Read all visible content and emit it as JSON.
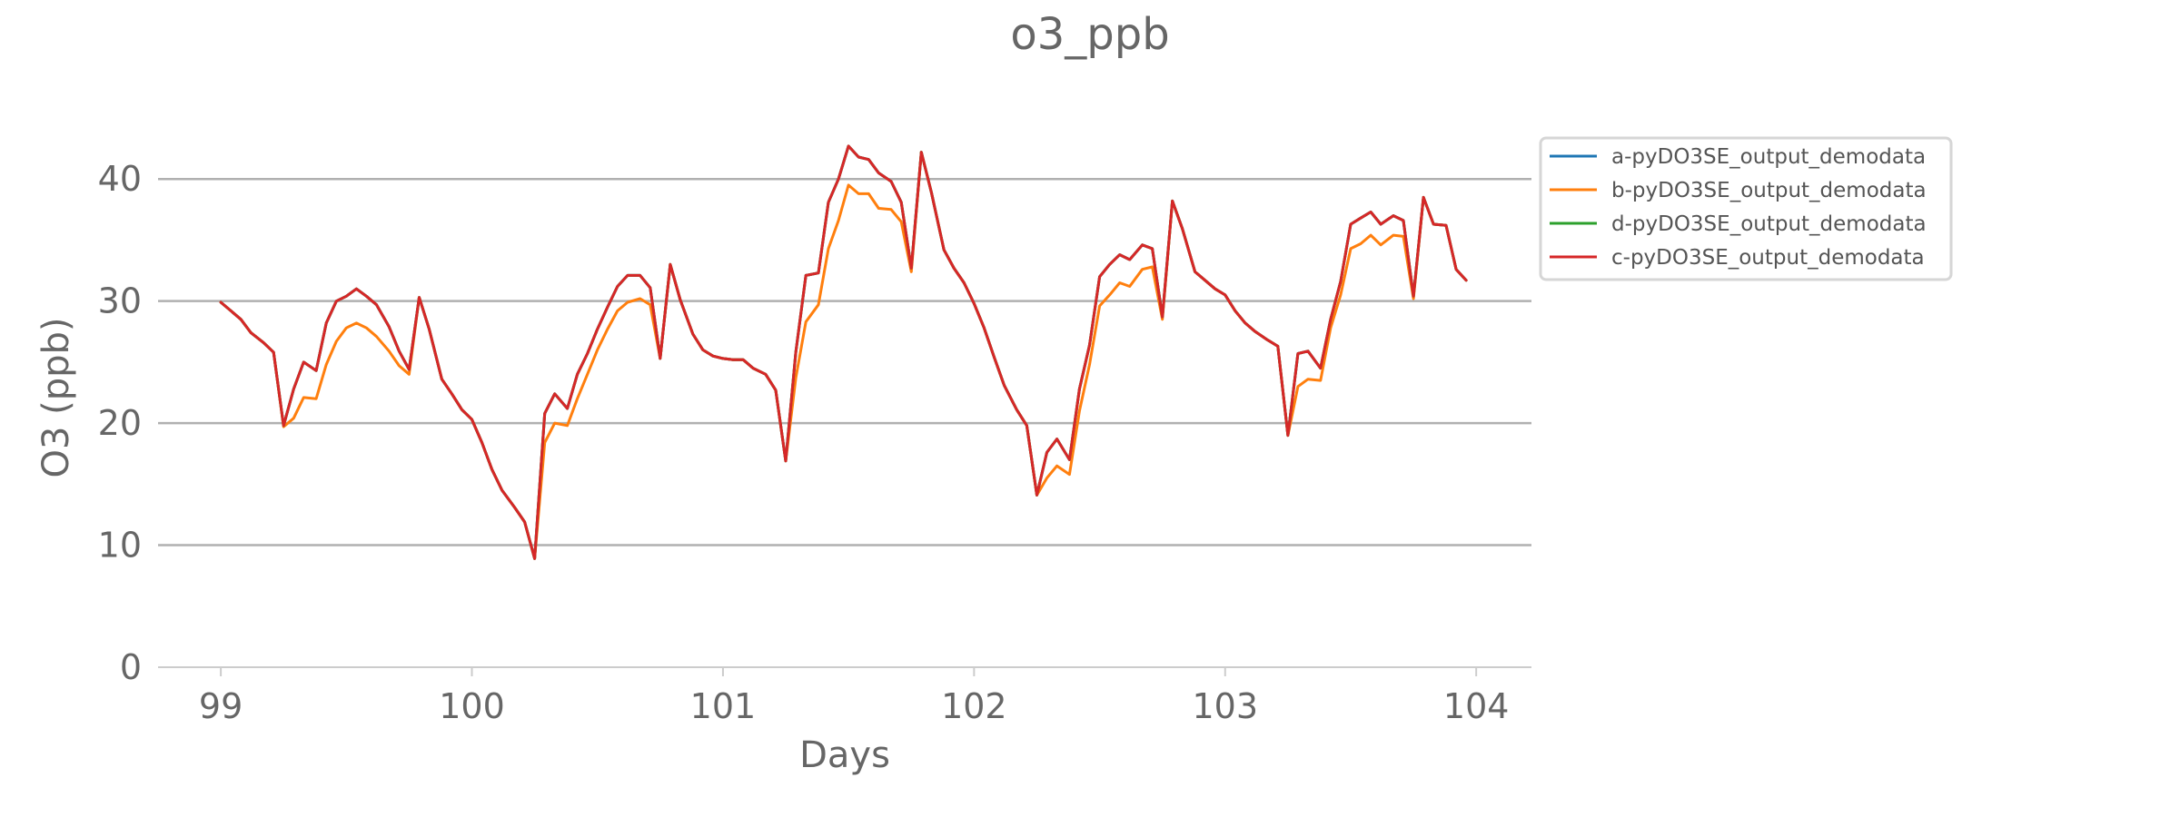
{
  "chart_data": {
    "type": "line",
    "title": "o3_ppb",
    "xlabel": "Days",
    "ylabel": "O3 (ppb)",
    "xlim": [
      98.75,
      104.22
    ],
    "ylim": [
      0,
      45
    ],
    "xticks": [
      99,
      100,
      101,
      102,
      103,
      104
    ],
    "xtick_labels": [
      "99",
      "100",
      "101",
      "102",
      "103",
      "104"
    ],
    "yticks": [
      0,
      10,
      20,
      30,
      40
    ],
    "ytick_labels": [
      "0",
      "10",
      "20",
      "30",
      "40"
    ],
    "grid": "horizontal",
    "legend_position": "outside-right-top",
    "colors": {
      "grid": "#b0b0b0",
      "axis": "#cccccc",
      "text": "#666666"
    },
    "series": [
      {
        "name": "a-pyDO3SE_output_demodata",
        "color": "#1f77b4",
        "x": [
          99.0,
          99.04,
          99.08,
          99.12,
          99.17,
          99.21,
          99.25,
          99.29,
          99.33,
          99.38,
          99.42,
          99.46,
          99.5,
          99.54,
          99.58,
          99.62,
          99.67,
          99.71,
          99.75,
          99.79,
          99.83,
          99.88,
          99.92,
          99.96,
          100.0,
          100.04,
          100.08,
          100.12,
          100.17,
          100.21,
          100.25,
          100.29,
          100.33,
          100.38,
          100.42,
          100.46,
          100.5,
          100.54,
          100.58,
          100.62,
          100.67,
          100.71,
          100.75,
          100.79,
          100.83,
          100.88,
          100.92,
          100.96,
          101.0,
          101.04,
          101.08,
          101.12,
          101.17,
          101.21,
          101.25,
          101.29,
          101.33,
          101.38,
          101.42,
          101.46,
          101.5,
          101.54,
          101.58,
          101.62,
          101.67,
          101.71,
          101.75,
          101.79,
          101.83,
          101.88,
          101.92,
          101.96,
          102.0,
          102.04,
          102.08,
          102.12,
          102.17,
          102.21,
          102.25,
          102.29,
          102.33,
          102.38,
          102.42,
          102.46,
          102.5,
          102.54,
          102.58,
          102.62,
          102.67,
          102.71,
          102.75,
          102.79,
          102.83,
          102.88,
          102.92,
          102.96,
          103.0,
          103.04,
          103.08,
          103.12,
          103.17,
          103.21,
          103.25,
          103.29,
          103.33,
          103.38,
          103.42,
          103.46,
          103.5,
          103.54,
          103.58,
          103.62,
          103.67,
          103.71,
          103.75,
          103.79,
          103.83,
          103.88,
          103.92,
          103.96
        ],
        "values": [
          29.9,
          29.2,
          28.5,
          27.4,
          26.6,
          25.8,
          19.8,
          22.8,
          25.0,
          24.3,
          28.2,
          30.0,
          30.4,
          31.0,
          30.4,
          29.7,
          27.9,
          25.9,
          24.4,
          30.3,
          27.7,
          23.6,
          22.4,
          21.1,
          20.3,
          18.4,
          16.2,
          14.5,
          13.1,
          11.9,
          8.9,
          20.8,
          22.4,
          21.2,
          24.0,
          25.7,
          27.7,
          29.5,
          31.2,
          32.1,
          32.1,
          31.1,
          25.3,
          33.0,
          30.1,
          27.3,
          26.0,
          25.5,
          25.3,
          25.2,
          25.2,
          24.5,
          24.0,
          22.7,
          16.9,
          25.8,
          32.1,
          32.3,
          38.1,
          40.0,
          42.7,
          41.8,
          41.6,
          40.5,
          39.8,
          38.1,
          32.7,
          42.2,
          38.9,
          34.2,
          32.7,
          31.5,
          29.8,
          27.8,
          25.4,
          23.1,
          21.1,
          19.8,
          14.1,
          17.6,
          18.7,
          17.0,
          22.8,
          26.4,
          32.0,
          33.0,
          33.8,
          33.4,
          34.6,
          34.3,
          28.7,
          38.2,
          35.9,
          32.4,
          31.7,
          31.0,
          30.5,
          29.2,
          28.2,
          27.5,
          26.8,
          26.3,
          19.0,
          25.7,
          25.9,
          24.5,
          28.5,
          31.6,
          36.3,
          36.8,
          37.3,
          36.3,
          37.0,
          36.6,
          30.4,
          38.5,
          36.3,
          36.2,
          32.6,
          31.7
        ]
      },
      {
        "name": "b-pyDO3SE_output_demodata",
        "color": "#ff7f0e",
        "x": [
          99.0,
          99.04,
          99.08,
          99.12,
          99.17,
          99.21,
          99.25,
          99.29,
          99.33,
          99.38,
          99.42,
          99.46,
          99.5,
          99.54,
          99.58,
          99.62,
          99.67,
          99.71,
          99.75,
          99.79,
          99.83,
          99.88,
          99.92,
          99.96,
          100.0,
          100.04,
          100.08,
          100.12,
          100.17,
          100.21,
          100.25,
          100.29,
          100.33,
          100.38,
          100.42,
          100.46,
          100.5,
          100.54,
          100.58,
          100.62,
          100.67,
          100.71,
          100.75,
          100.79,
          100.83,
          100.88,
          100.92,
          100.96,
          101.0,
          101.04,
          101.08,
          101.12,
          101.17,
          101.21,
          101.25,
          101.29,
          101.33,
          101.38,
          101.42,
          101.46,
          101.5,
          101.54,
          101.58,
          101.62,
          101.67,
          101.71,
          101.75,
          101.79,
          101.83,
          101.88,
          101.92,
          101.96,
          102.0,
          102.04,
          102.08,
          102.12,
          102.17,
          102.21,
          102.25,
          102.29,
          102.33,
          102.38,
          102.42,
          102.46,
          102.5,
          102.54,
          102.58,
          102.62,
          102.67,
          102.71,
          102.75,
          102.79,
          102.83,
          102.88,
          102.92,
          102.96,
          103.0,
          103.04,
          103.08,
          103.12,
          103.17,
          103.21,
          103.25,
          103.29,
          103.33,
          103.38,
          103.42,
          103.46,
          103.5,
          103.54,
          103.58,
          103.62,
          103.67,
          103.71,
          103.75,
          103.79,
          103.83,
          103.88,
          103.92,
          103.96
        ],
        "values": [
          29.9,
          29.2,
          28.5,
          27.4,
          26.6,
          25.8,
          19.7,
          20.4,
          22.1,
          22.0,
          24.8,
          26.7,
          27.8,
          28.2,
          27.8,
          27.1,
          25.9,
          24.7,
          24.0,
          30.3,
          27.7,
          23.6,
          22.4,
          21.1,
          20.3,
          18.4,
          16.2,
          14.5,
          13.1,
          11.9,
          8.9,
          18.4,
          20.0,
          19.8,
          22.0,
          24.0,
          26.0,
          27.7,
          29.2,
          29.9,
          30.2,
          29.7,
          25.3,
          33.0,
          30.1,
          27.3,
          26.0,
          25.5,
          25.3,
          25.2,
          25.2,
          24.5,
          24.0,
          22.7,
          16.9,
          23.7,
          28.3,
          29.7,
          34.3,
          36.6,
          39.5,
          38.8,
          38.8,
          37.6,
          37.5,
          36.5,
          32.4,
          42.2,
          38.9,
          34.2,
          32.7,
          31.5,
          29.8,
          27.8,
          25.4,
          23.1,
          21.1,
          19.8,
          14.1,
          15.5,
          16.5,
          15.8,
          21.0,
          24.8,
          29.6,
          30.5,
          31.5,
          31.2,
          32.6,
          32.8,
          28.5,
          38.2,
          35.9,
          32.4,
          31.7,
          31.0,
          30.5,
          29.2,
          28.2,
          27.5,
          26.8,
          26.3,
          19.0,
          23.0,
          23.6,
          23.5,
          27.8,
          30.5,
          34.3,
          34.7,
          35.4,
          34.6,
          35.4,
          35.3,
          30.2,
          38.5,
          36.3,
          36.2,
          32.6,
          31.7
        ]
      },
      {
        "name": "d-pyDO3SE_output_demodata",
        "color": "#2ca02c",
        "x": [
          99.0,
          99.04,
          99.08,
          99.12,
          99.17,
          99.21,
          99.25,
          99.29,
          99.33,
          99.38,
          99.42,
          99.46,
          99.5,
          99.54,
          99.58,
          99.62,
          99.67,
          99.71,
          99.75,
          99.79,
          99.83,
          99.88,
          99.92,
          99.96,
          100.0,
          100.04,
          100.08,
          100.12,
          100.17,
          100.21,
          100.25,
          100.29,
          100.33,
          100.38,
          100.42,
          100.46,
          100.5,
          100.54,
          100.58,
          100.62,
          100.67,
          100.71,
          100.75,
          100.79,
          100.83,
          100.88,
          100.92,
          100.96,
          101.0,
          101.04,
          101.08,
          101.12,
          101.17,
          101.21,
          101.25,
          101.29,
          101.33,
          101.38,
          101.42,
          101.46,
          101.5,
          101.54,
          101.58,
          101.62,
          101.67,
          101.71,
          101.75,
          101.79,
          101.83,
          101.88,
          101.92,
          101.96,
          102.0,
          102.04,
          102.08,
          102.12,
          102.17,
          102.21,
          102.25,
          102.29,
          102.33,
          102.38,
          102.42,
          102.46,
          102.5,
          102.54,
          102.58,
          102.62,
          102.67,
          102.71,
          102.75,
          102.79,
          102.83,
          102.88,
          102.92,
          102.96,
          103.0,
          103.04,
          103.08,
          103.12,
          103.17,
          103.21,
          103.25,
          103.29,
          103.33,
          103.38,
          103.42,
          103.46,
          103.5,
          103.54,
          103.58,
          103.62,
          103.67,
          103.71,
          103.75,
          103.79,
          103.83,
          103.88,
          103.92,
          103.96
        ],
        "values": [
          29.9,
          29.2,
          28.5,
          27.4,
          26.6,
          25.8,
          19.8,
          22.8,
          25.0,
          24.3,
          28.2,
          30.0,
          30.4,
          31.0,
          30.4,
          29.7,
          27.9,
          25.9,
          24.4,
          30.3,
          27.7,
          23.6,
          22.4,
          21.1,
          20.3,
          18.4,
          16.2,
          14.5,
          13.1,
          11.9,
          8.9,
          20.8,
          22.4,
          21.2,
          24.0,
          25.7,
          27.7,
          29.5,
          31.2,
          32.1,
          32.1,
          31.1,
          25.3,
          33.0,
          30.1,
          27.3,
          26.0,
          25.5,
          25.3,
          25.2,
          25.2,
          24.5,
          24.0,
          22.7,
          16.9,
          25.8,
          32.1,
          32.3,
          38.1,
          40.0,
          42.7,
          41.8,
          41.6,
          40.5,
          39.8,
          38.1,
          32.7,
          42.2,
          38.9,
          34.2,
          32.7,
          31.5,
          29.8,
          27.8,
          25.4,
          23.1,
          21.1,
          19.8,
          14.1,
          17.6,
          18.7,
          17.0,
          22.8,
          26.4,
          32.0,
          33.0,
          33.8,
          33.4,
          34.6,
          34.3,
          28.7,
          38.2,
          35.9,
          32.4,
          31.7,
          31.0,
          30.5,
          29.2,
          28.2,
          27.5,
          26.8,
          26.3,
          19.0,
          25.7,
          25.9,
          24.5,
          28.5,
          31.6,
          36.3,
          36.8,
          37.3,
          36.3,
          37.0,
          36.6,
          30.4,
          38.5,
          36.3,
          36.2,
          32.6,
          31.7
        ]
      },
      {
        "name": "c-pyDO3SE_output_demodata",
        "color": "#d62728",
        "x": [
          99.0,
          99.04,
          99.08,
          99.12,
          99.17,
          99.21,
          99.25,
          99.29,
          99.33,
          99.38,
          99.42,
          99.46,
          99.5,
          99.54,
          99.58,
          99.62,
          99.67,
          99.71,
          99.75,
          99.79,
          99.83,
          99.88,
          99.92,
          99.96,
          100.0,
          100.04,
          100.08,
          100.12,
          100.17,
          100.21,
          100.25,
          100.29,
          100.33,
          100.38,
          100.42,
          100.46,
          100.5,
          100.54,
          100.58,
          100.62,
          100.67,
          100.71,
          100.75,
          100.79,
          100.83,
          100.88,
          100.92,
          100.96,
          101.0,
          101.04,
          101.08,
          101.12,
          101.17,
          101.21,
          101.25,
          101.29,
          101.33,
          101.38,
          101.42,
          101.46,
          101.5,
          101.54,
          101.58,
          101.62,
          101.67,
          101.71,
          101.75,
          101.79,
          101.83,
          101.88,
          101.92,
          101.96,
          102.0,
          102.04,
          102.08,
          102.12,
          102.17,
          102.21,
          102.25,
          102.29,
          102.33,
          102.38,
          102.42,
          102.46,
          102.5,
          102.54,
          102.58,
          102.62,
          102.67,
          102.71,
          102.75,
          102.79,
          102.83,
          102.88,
          102.92,
          102.96,
          103.0,
          103.04,
          103.08,
          103.12,
          103.17,
          103.21,
          103.25,
          103.29,
          103.33,
          103.38,
          103.42,
          103.46,
          103.5,
          103.54,
          103.58,
          103.62,
          103.67,
          103.71,
          103.75,
          103.79,
          103.83,
          103.88,
          103.92,
          103.96
        ],
        "values": [
          29.9,
          29.2,
          28.5,
          27.4,
          26.6,
          25.8,
          19.8,
          22.8,
          25.0,
          24.3,
          28.2,
          30.0,
          30.4,
          31.0,
          30.4,
          29.7,
          27.9,
          25.9,
          24.4,
          30.3,
          27.7,
          23.6,
          22.4,
          21.1,
          20.3,
          18.4,
          16.2,
          14.5,
          13.1,
          11.9,
          8.9,
          20.8,
          22.4,
          21.2,
          24.0,
          25.7,
          27.7,
          29.5,
          31.2,
          32.1,
          32.1,
          31.1,
          25.3,
          33.0,
          30.1,
          27.3,
          26.0,
          25.5,
          25.3,
          25.2,
          25.2,
          24.5,
          24.0,
          22.7,
          16.9,
          25.8,
          32.1,
          32.3,
          38.1,
          40.0,
          42.7,
          41.8,
          41.6,
          40.5,
          39.8,
          38.1,
          32.7,
          42.2,
          38.9,
          34.2,
          32.7,
          31.5,
          29.8,
          27.8,
          25.4,
          23.1,
          21.1,
          19.8,
          14.1,
          17.6,
          18.7,
          17.0,
          22.8,
          26.4,
          32.0,
          33.0,
          33.8,
          33.4,
          34.6,
          34.3,
          28.7,
          38.2,
          35.9,
          32.4,
          31.7,
          31.0,
          30.5,
          29.2,
          28.2,
          27.5,
          26.8,
          26.3,
          19.0,
          25.7,
          25.9,
          24.5,
          28.5,
          31.6,
          36.3,
          36.8,
          37.3,
          36.3,
          37.0,
          36.6,
          30.4,
          38.5,
          36.3,
          36.2,
          32.6,
          31.7
        ]
      }
    ]
  }
}
